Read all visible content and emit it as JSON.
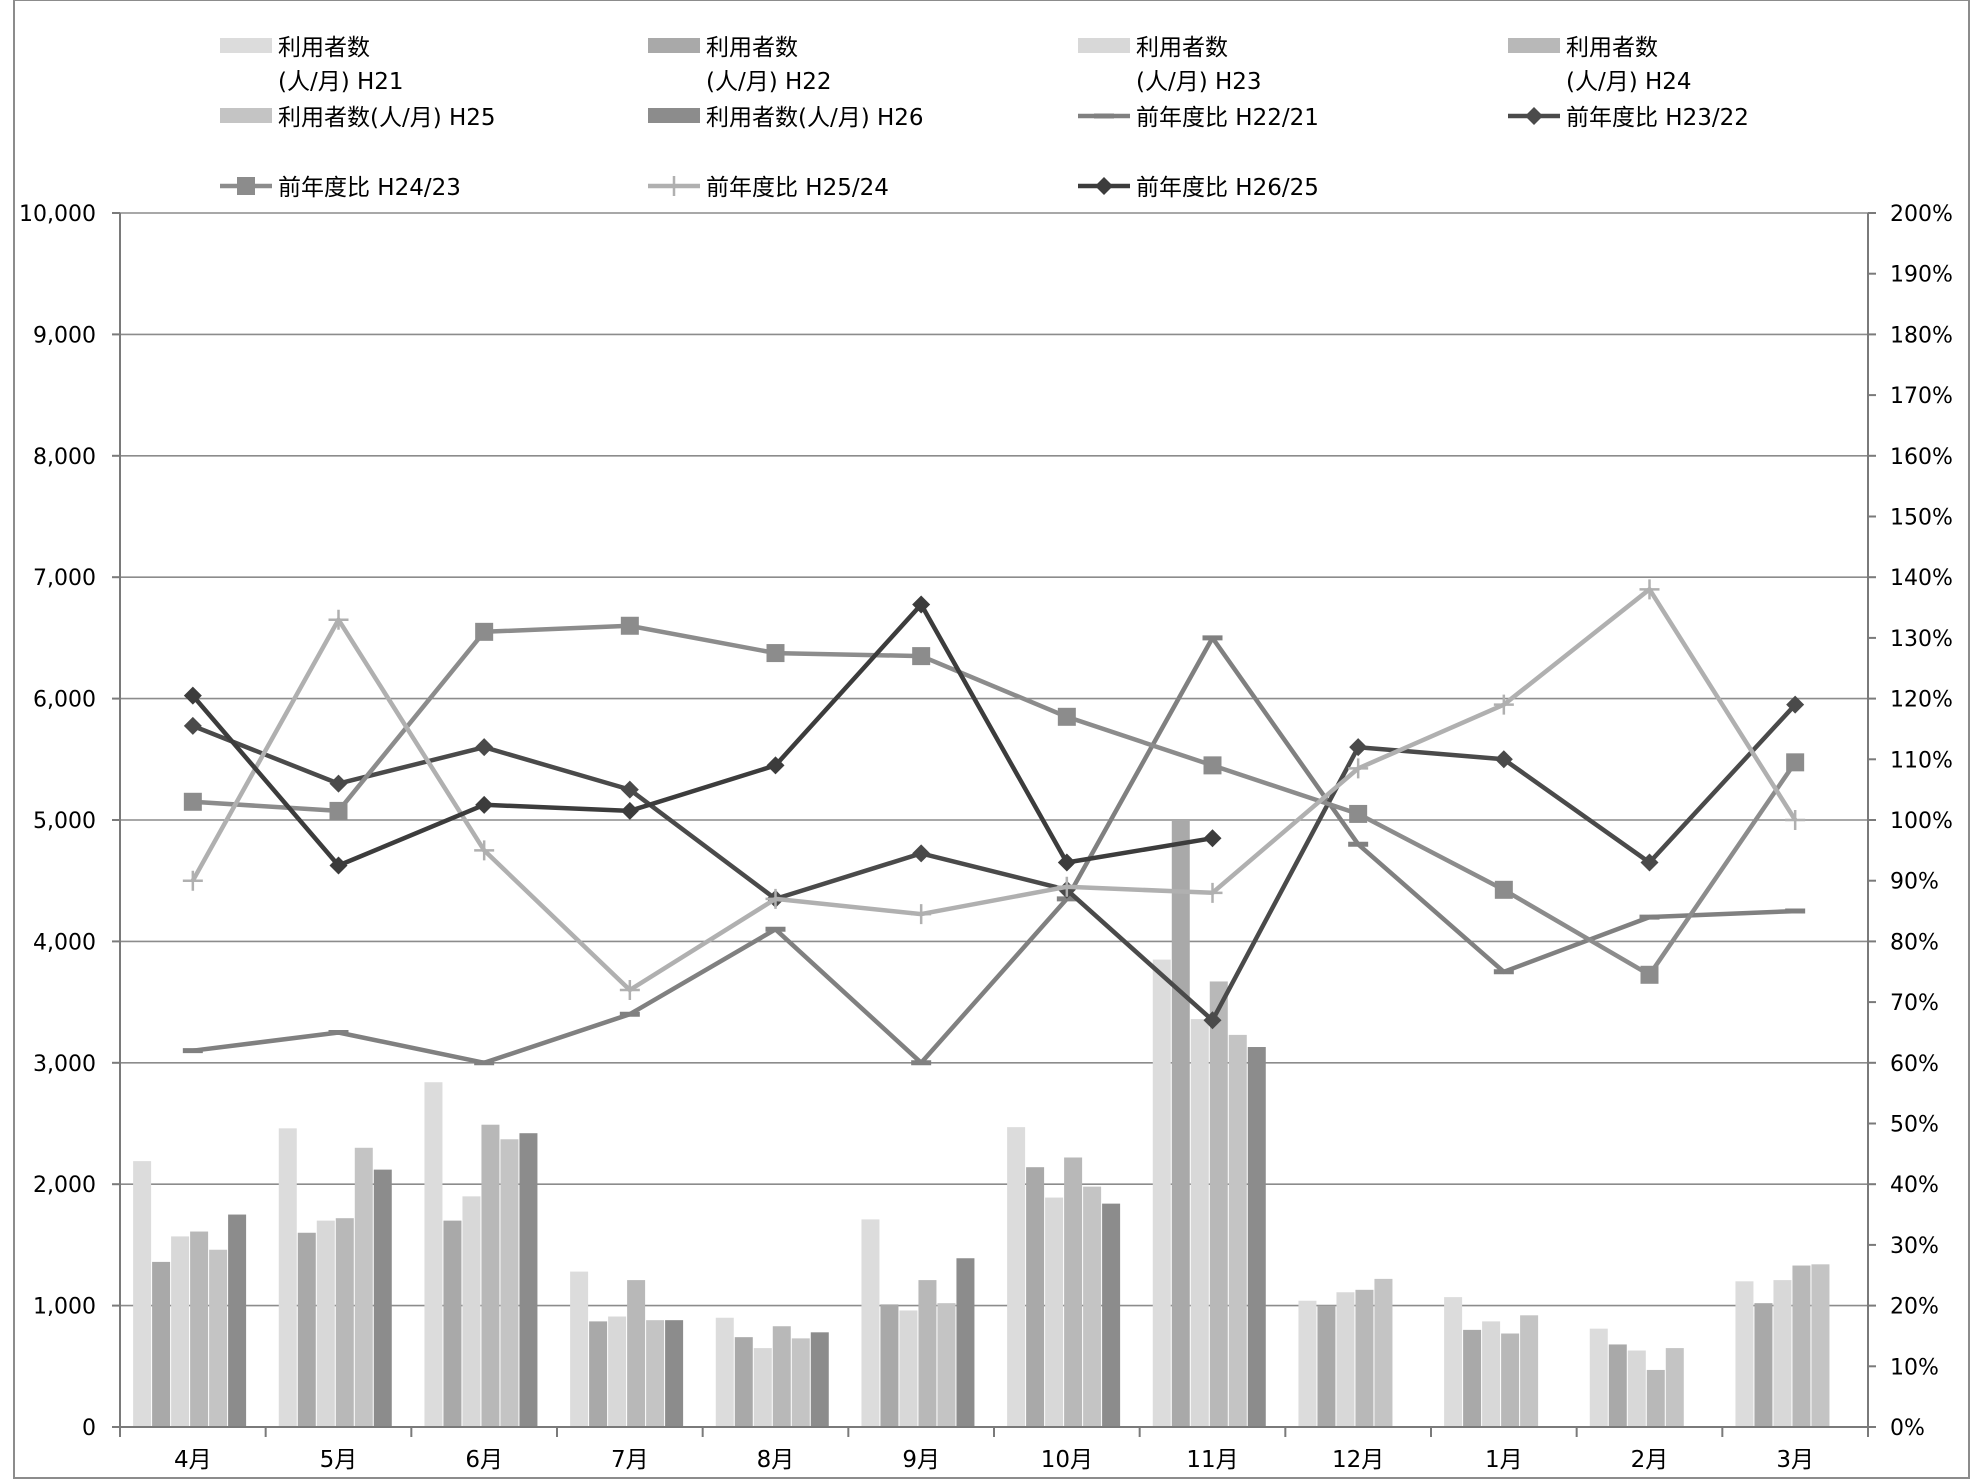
{
  "chart_data": {
    "type": "bar",
    "categories": [
      "4月",
      "5月",
      "6月",
      "7月",
      "8月",
      "9月",
      "10月",
      "11月",
      "12月",
      "1月",
      "2月",
      "3月"
    ],
    "y_left": {
      "min": 0,
      "max": 10000,
      "step": 1000,
      "tick_labels": [
        "0",
        "1,000",
        "2,000",
        "3,000",
        "4,000",
        "5,000",
        "6,000",
        "7,000",
        "8,000",
        "9,000",
        "10,000"
      ]
    },
    "y_right": {
      "min": 0,
      "max": 200,
      "step": 10,
      "tick_labels": [
        "0%",
        "10%",
        "20%",
        "30%",
        "40%",
        "50%",
        "60%",
        "70%",
        "80%",
        "90%",
        "100%",
        "110%",
        "120%",
        "130%",
        "140%",
        "150%",
        "160%",
        "170%",
        "180%",
        "190%",
        "200%"
      ]
    },
    "grid": "horizontal major gridlines",
    "legend_position": "top",
    "bar_series": [
      {
        "name_lines": [
          "利用者数",
          "(人/月) H21"
        ],
        "color": "#dcdcdc",
        "values": [
          2190,
          2460,
          2840,
          1280,
          900,
          1710,
          2470,
          3850,
          1040,
          1070,
          810,
          1200
        ]
      },
      {
        "name_lines": [
          "利用者数",
          "(人/月) H22"
        ],
        "color": "#a9a9a9",
        "values": [
          1360,
          1600,
          1700,
          870,
          740,
          1010,
          2140,
          5000,
          1000,
          800,
          680,
          1020
        ]
      },
      {
        "name_lines": [
          "利用者数",
          "(人/月) H23"
        ],
        "color": "#d8d8d8",
        "values": [
          1570,
          1700,
          1900,
          910,
          650,
          960,
          1890,
          3360,
          1110,
          870,
          630,
          1210
        ]
      },
      {
        "name_lines": [
          "利用者数",
          "(人/月) H24"
        ],
        "color": "#b8b8b8",
        "values": [
          1610,
          1720,
          2490,
          1210,
          830,
          1210,
          2220,
          3670,
          1130,
          770,
          470,
          1330
        ]
      },
      {
        "name_lines": [
          "利用者数(人/月) H25"
        ],
        "color": "#c4c4c4",
        "values": [
          1460,
          2300,
          2370,
          880,
          730,
          1020,
          1980,
          3230,
          1220,
          920,
          650,
          1340
        ]
      },
      {
        "name_lines": [
          "利用者数(人/月) H26"
        ],
        "color": "#8c8c8c",
        "values": [
          1750,
          2120,
          2420,
          880,
          780,
          1390,
          1840,
          3130,
          null,
          null,
          null,
          null
        ]
      }
    ],
    "line_series": [
      {
        "name": "前年度比 H22/21",
        "color": "#808080",
        "marker": "dash",
        "values": [
          62,
          65,
          60,
          68,
          82,
          60,
          87,
          130,
          96,
          75,
          84,
          85
        ]
      },
      {
        "name": "前年度比 H23/22",
        "color": "#4a4a4a",
        "marker": "diamond",
        "values": [
          115.5,
          106,
          112,
          105,
          87,
          94.5,
          88.5,
          67,
          112,
          110,
          93,
          119
        ]
      },
      {
        "name": "前年度比 H24/23",
        "color": "#8c8c8c",
        "marker": "square",
        "values": [
          103,
          101.5,
          131,
          132,
          127.5,
          127,
          117,
          109,
          101,
          88.5,
          74.5,
          109.5
        ]
      },
      {
        "name": "前年度比 H25/24",
        "color": "#b0b0b0",
        "marker": "plus",
        "values": [
          90,
          133,
          95,
          72,
          87,
          84.5,
          89,
          88,
          108.5,
          119,
          138,
          100
        ]
      },
      {
        "name": "前年度比 H26/25",
        "color": "#3c3c3c",
        "marker": "diamond",
        "values": [
          120.5,
          92.5,
          102.5,
          101.5,
          109,
          135.5,
          93,
          97,
          null,
          null,
          null,
          null
        ]
      }
    ]
  }
}
